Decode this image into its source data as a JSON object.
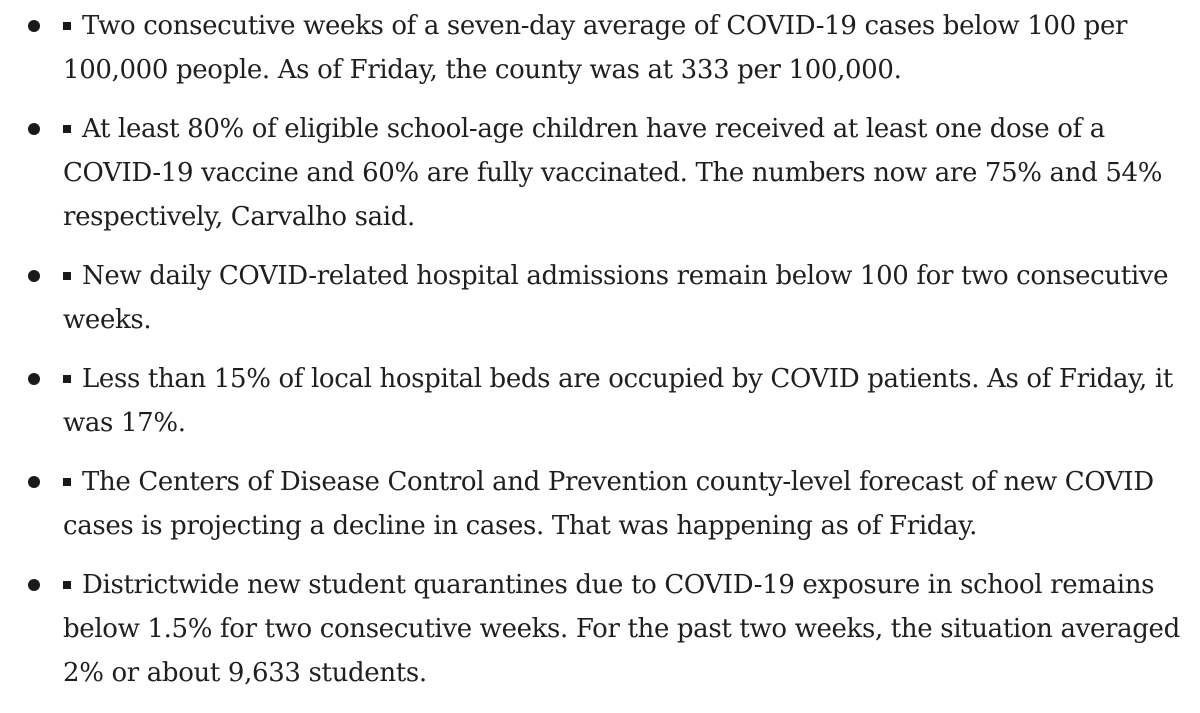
{
  "items": [
    {
      "icon": "square-mark-icon",
      "text": "Two consecutive weeks of a seven-day average of COVID-19 cases below 100 per 100,000 people. As of Friday, the county was at 333 per 100,000."
    },
    {
      "icon": "square-mark-icon",
      "text": "At least 80% of eligible school-age children have received at least one dose of a COVID-19 vaccine and 60% are fully vaccinated. The numbers now are 75% and 54% respectively, Carvalho said."
    },
    {
      "icon": "square-mark-icon",
      "text": "New daily COVID-related hospital admissions remain below 100 for two consecutive weeks."
    },
    {
      "icon": "square-mark-icon",
      "text": "Less than 15% of local hospital beds are occupied by COVID patients. As of Friday, it was 17%."
    },
    {
      "icon": "square-mark-icon",
      "text": "The Centers of Disease Control and Prevention county-level forecast of new COVID cases is projecting a decline in cases. That was happening as of Friday."
    },
    {
      "icon": "square-mark-icon",
      "text": "Districtwide new student quarantines due to COVID-19 exposure in school remains below 1.5% for two consecutive weeks. For the past two weeks, the situation averaged 2% or about 9,633 students."
    }
  ]
}
